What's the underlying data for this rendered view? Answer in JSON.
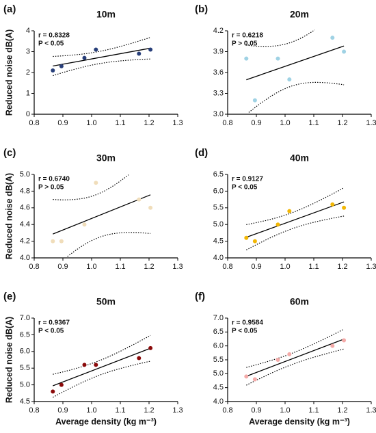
{
  "chart_data": [
    {
      "type": "scatter",
      "panel": "(a)",
      "title": "10m",
      "annotations": [
        "r = 0.8328",
        "P < 0.05"
      ],
      "ylabel": "Reduced noise dB(A)",
      "x": [
        0.865,
        0.895,
        0.975,
        1.015,
        1.165,
        1.205
      ],
      "values": [
        2.1,
        2.3,
        2.7,
        3.1,
        2.9,
        3.1
      ],
      "color": "#283f7a",
      "xlim": [
        0.8,
        1.3
      ],
      "xticks": [
        0.8,
        0.9,
        {
          "value": 1,
          "label": "1.0"
        },
        1.1,
        1.2,
        1.3
      ],
      "ylim": [
        0,
        4
      ],
      "yticks": [
        0,
        1,
        2,
        3,
        4
      ]
    },
    {
      "type": "scatter",
      "panel": "(b)",
      "title": "20m",
      "annotations": [
        "r = 0.6218",
        "P > 0.05"
      ],
      "x": [
        0.865,
        0.895,
        0.975,
        1.015,
        1.165,
        1.205
      ],
      "values": [
        3.8,
        3.2,
        3.8,
        3.5,
        4.1,
        3.9
      ],
      "color": "#9fd2e4",
      "xlim": [
        0.8,
        1.3
      ],
      "xticks": [
        0.8,
        0.9,
        {
          "value": 1,
          "label": "1.0"
        },
        1.1,
        1.2,
        1.3
      ],
      "ylim": [
        3,
        4.2
      ],
      "yticks": [
        {
          "value": 3,
          "label": "3.0"
        },
        3.3,
        3.6,
        3.9,
        4.2
      ]
    },
    {
      "type": "scatter",
      "panel": "(c)",
      "title": "30m",
      "annotations": [
        "r = 0.6740",
        "P > 0.05"
      ],
      "ylabel": "Reduced noise dB(A)",
      "x": [
        0.865,
        0.895,
        0.975,
        1.015,
        1.165,
        1.205
      ],
      "values": [
        4.2,
        4.2,
        4.4,
        4.9,
        4.7,
        4.6
      ],
      "color": "#f0ddba",
      "xlim": [
        0.8,
        1.3
      ],
      "xticks": [
        0.8,
        0.9,
        {
          "value": 1,
          "label": "1.0"
        },
        1.1,
        1.2,
        1.3
      ],
      "ylim": [
        4,
        5
      ],
      "yticks": [
        {
          "value": 4,
          "label": "4.0"
        },
        4.2,
        4.4,
        4.6,
        4.8,
        {
          "value": 5,
          "label": "5.0"
        }
      ]
    },
    {
      "type": "scatter",
      "panel": "(d)",
      "title": "40m",
      "annotations": [
        "r = 0.9127",
        "P < 0.05"
      ],
      "x": [
        0.865,
        0.895,
        0.975,
        1.015,
        1.165,
        1.205
      ],
      "values": [
        4.6,
        4.5,
        5.0,
        5.4,
        5.6,
        5.5
      ],
      "color": "#f2b705",
      "xlim": [
        0.8,
        1.3
      ],
      "xticks": [
        0.8,
        0.9,
        {
          "value": 1,
          "label": "1.0"
        },
        1.1,
        1.2,
        1.3
      ],
      "ylim": [
        4,
        6.5
      ],
      "yticks": [
        {
          "value": 4,
          "label": "4.0"
        },
        4.5,
        {
          "value": 5,
          "label": "5.0"
        },
        5.5,
        {
          "value": 6,
          "label": "6.0"
        },
        6.5
      ]
    },
    {
      "type": "scatter",
      "panel": "(e)",
      "title": "50m",
      "annotations": [
        "r = 0.9367",
        "P < 0.05"
      ],
      "ylabel": "Reduced noise dB(A)",
      "xlabel": "Average density (kg m⁻³)",
      "x": [
        0.865,
        0.895,
        0.975,
        1.015,
        1.165,
        1.205
      ],
      "values": [
        4.8,
        5.0,
        5.6,
        5.6,
        5.8,
        6.1
      ],
      "color": "#8b0a0a",
      "xlim": [
        0.8,
        1.3
      ],
      "xticks": [
        0.8,
        0.9,
        {
          "value": 1,
          "label": "1.0"
        },
        1.1,
        1.2,
        1.3
      ],
      "ylim": [
        4.5,
        7
      ],
      "yticks": [
        4.5,
        {
          "value": 5,
          "label": "5.0"
        },
        5.5,
        {
          "value": 6,
          "label": "6.0"
        },
        6.5,
        {
          "value": 7,
          "label": "7.0"
        }
      ]
    },
    {
      "type": "scatter",
      "panel": "(f)",
      "title": "60m",
      "annotations": [
        "r = 0.9584",
        "P < 0.05"
      ],
      "xlabel": "Average density (kg m⁻³)",
      "x": [
        0.865,
        0.895,
        0.975,
        1.015,
        1.165,
        1.205
      ],
      "values": [
        4.9,
        4.8,
        5.5,
        5.7,
        6.0,
        6.2
      ],
      "color": "#f4aaa8",
      "xlim": [
        0.8,
        1.3
      ],
      "xticks": [
        0.8,
        0.9,
        {
          "value": 1,
          "label": "1.0"
        },
        1.1,
        1.2,
        1.3
      ],
      "ylim": [
        4,
        7
      ],
      "yticks": [
        {
          "value": 4,
          "label": "4.0"
        },
        4.5,
        {
          "value": 5,
          "label": "5.0"
        },
        5.5,
        {
          "value": 6,
          "label": "6.0"
        },
        6.5,
        {
          "value": 7,
          "label": "7.0"
        }
      ]
    }
  ]
}
